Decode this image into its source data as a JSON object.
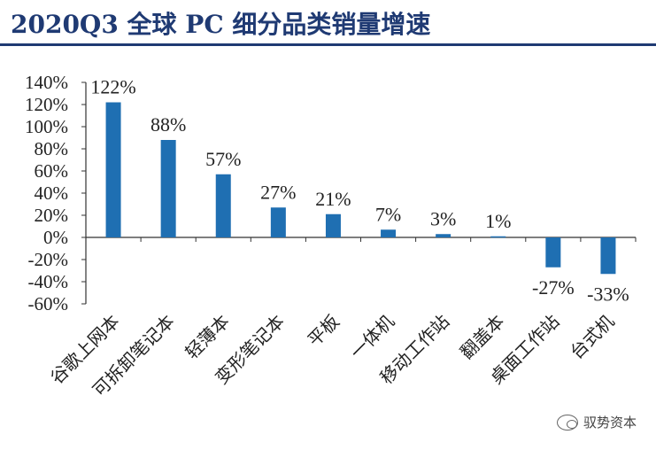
{
  "title": "2020Q3 全球 PC 细分品类销量增速",
  "watermark": {
    "text": "驭势资本",
    "icon": "wechat-icon"
  },
  "colors": {
    "bar": "#1f6fb2",
    "title": "#1f3a73",
    "axis": "#333333"
  },
  "chart_data": {
    "type": "bar",
    "title": "2020Q3 全球 PC 细分品类销量增速",
    "categories": [
      "谷歌上网本",
      "可拆卸笔记本",
      "轻薄本",
      "变形笔记本",
      "平板",
      "一体机",
      "移动工作站",
      "翻盖本",
      "桌面工作站",
      "台式机"
    ],
    "values": [
      122,
      88,
      57,
      27,
      21,
      7,
      3,
      1,
      -27,
      -33
    ],
    "data_labels": [
      "122%",
      "88%",
      "57%",
      "27%",
      "21%",
      "7%",
      "3%",
      "1%",
      "-27%",
      "-33%"
    ],
    "yticks": [
      140,
      120,
      100,
      80,
      60,
      40,
      20,
      0,
      -20,
      -40,
      -60
    ],
    "ytick_labels": [
      "140%",
      "120%",
      "100%",
      "80%",
      "60%",
      "40%",
      "20%",
      "0%",
      "-20%",
      "-40%",
      "-60%"
    ],
    "ylim": [
      -60,
      140
    ],
    "xlabel": "",
    "ylabel": "",
    "grid": false,
    "legend": "none"
  }
}
